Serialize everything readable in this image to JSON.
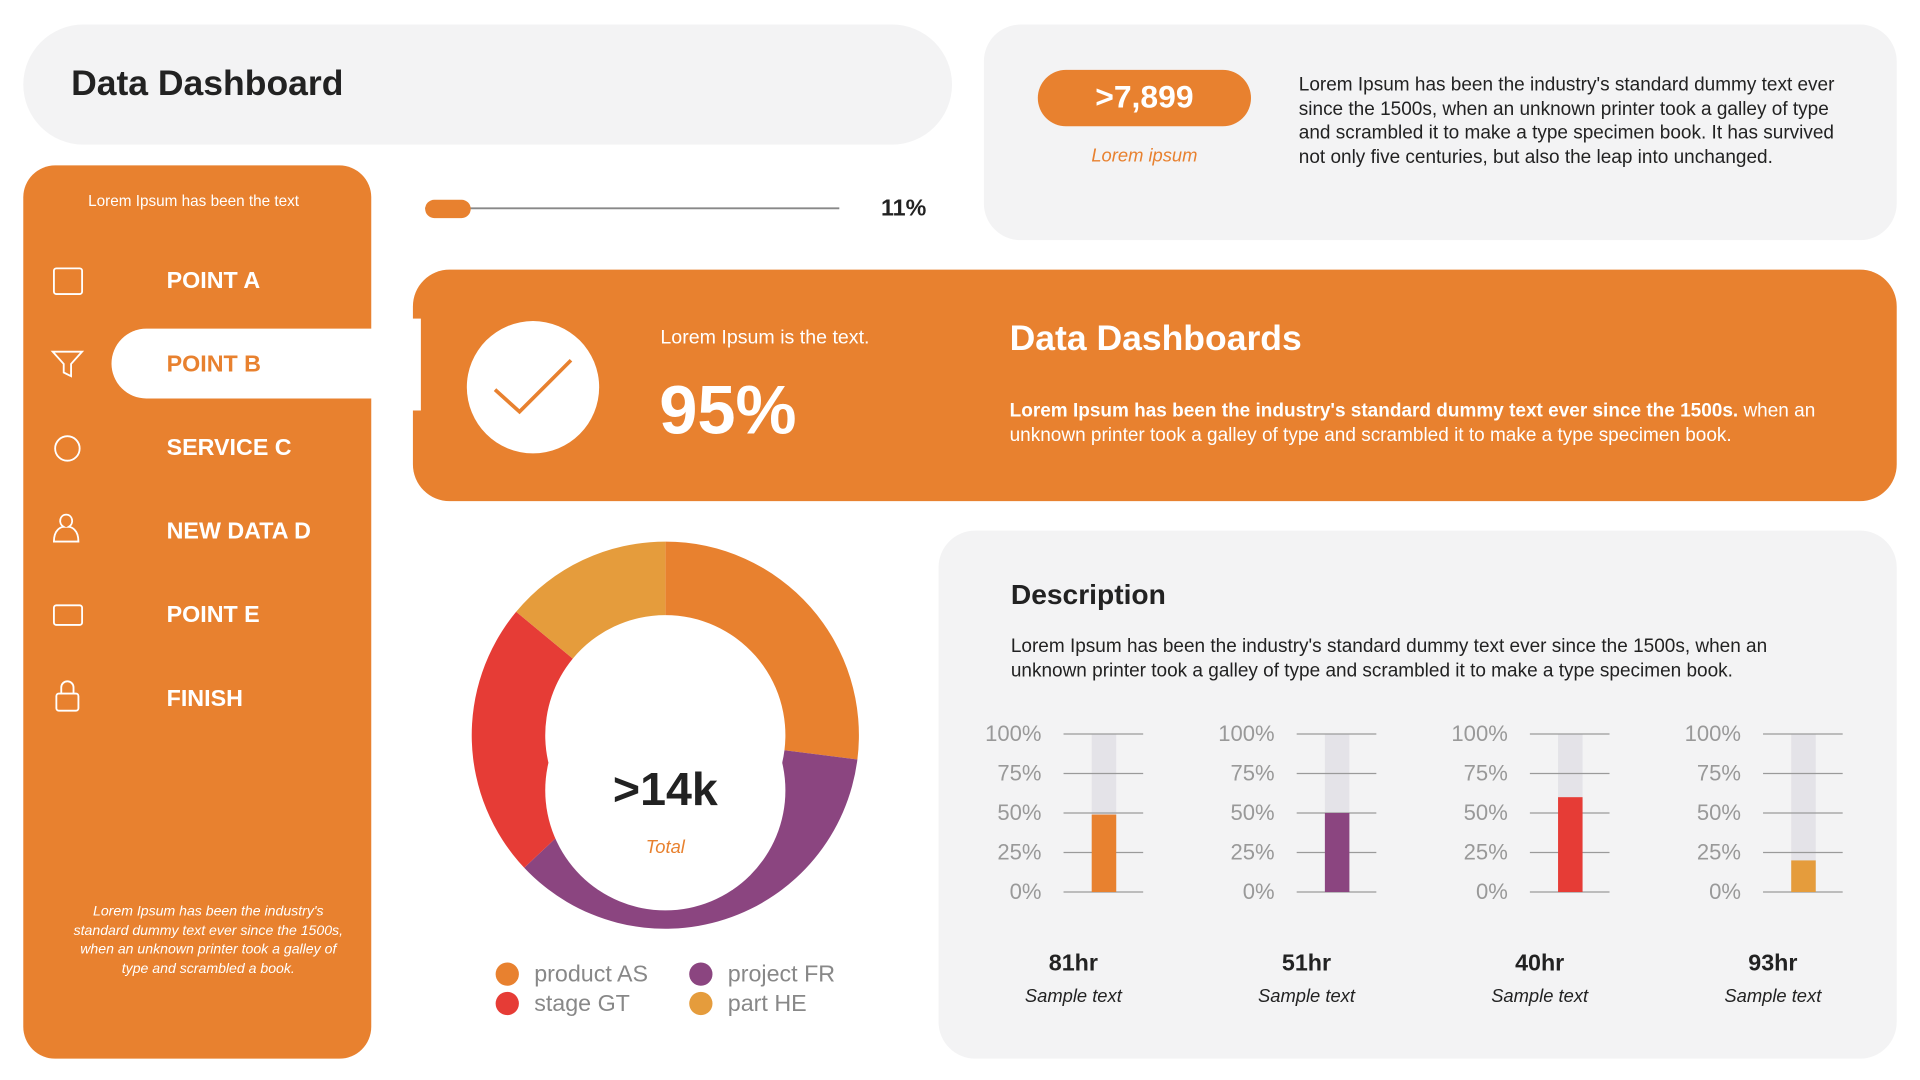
{
  "header": {
    "title": "Data Dashboard"
  },
  "stat": {
    "value": ">7,899",
    "caption": "Lorem ipsum",
    "text": "Lorem Ipsum has been the industry's standard dummy text ever since the 1500s, when an unknown printer took a galley of type and scrambled it to make a type specimen book. It has survived not only five centuries, but also the leap into unchanged."
  },
  "progress": {
    "value": 11,
    "label": "11%"
  },
  "sidebar": {
    "intro": "Lorem Ipsum has been the text",
    "items": [
      "POINT A",
      "POINT B",
      "SERVICE C",
      "NEW DATA D",
      "POINT E",
      "FINISH"
    ],
    "active": 1,
    "footer": "Lorem Ipsum has been the industry's standard dummy text ever since the 1500s, when an unknown printer took a galley of type and scrambled  a book."
  },
  "banner": {
    "subtitle": "Lorem Ipsum is the text.",
    "value": "95%",
    "title": "Data Dashboards",
    "text_bold": "Lorem Ipsum has been the industry's standard dummy text ever since the 1500s.",
    "text": "when an unknown printer took a galley of type and scrambled it to make a type specimen book."
  },
  "description": {
    "title": "Description",
    "text": "Lorem Ipsum has been the industry's standard dummy text ever since the 1500s, when an unknown printer took a galley of type and scrambled it to make a type specimen book."
  },
  "chart_data": [
    {
      "type": "pie",
      "center_label": ">14k",
      "center_caption": "Total",
      "categories": [
        "product AS",
        "project FR",
        "stage GT",
        "part HE"
      ],
      "values": [
        27,
        36,
        23,
        14
      ],
      "colors": [
        "#e8812f",
        "#8b4580",
        "#e63c36",
        "#e59c3c"
      ]
    },
    {
      "type": "bar",
      "values": [
        49
      ],
      "color": "#e8812f",
      "ylim": [
        0,
        100
      ],
      "yticks": [
        {
          "value": 100,
          "label": "100%"
        },
        {
          "value": 75,
          "label": "75%"
        },
        {
          "value": 50,
          "label": "50%"
        },
        {
          "value": 25,
          "label": "25%"
        },
        {
          "value": 0,
          "label": "0%"
        }
      ],
      "label": "81hr",
      "caption": "Sample text"
    },
    {
      "type": "bar",
      "values": [
        50
      ],
      "color": "#8b4580",
      "ylim": [
        0,
        100
      ],
      "yticks": [
        {
          "value": 100,
          "label": "100%"
        },
        {
          "value": 75,
          "label": "75%"
        },
        {
          "value": 50,
          "label": "50%"
        },
        {
          "value": 25,
          "label": "25%"
        },
        {
          "value": 0,
          "label": "0%"
        }
      ],
      "label": "51hr",
      "caption": "Sample text"
    },
    {
      "type": "bar",
      "values": [
        60
      ],
      "color": "#e63c36",
      "ylim": [
        0,
        100
      ],
      "yticks": [
        {
          "value": 100,
          "label": "100%"
        },
        {
          "value": 75,
          "label": "75%"
        },
        {
          "value": 50,
          "label": "50%"
        },
        {
          "value": 25,
          "label": "25%"
        },
        {
          "value": 0,
          "label": "0%"
        }
      ],
      "label": "40hr",
      "caption": "Sample text"
    },
    {
      "type": "bar",
      "values": [
        20
      ],
      "color": "#e59c3c",
      "ylim": [
        0,
        100
      ],
      "yticks": [
        {
          "value": 100,
          "label": "100%"
        },
        {
          "value": 75,
          "label": "75%"
        },
        {
          "value": 50,
          "label": "50%"
        },
        {
          "value": 25,
          "label": "25%"
        },
        {
          "value": 0,
          "label": "0%"
        }
      ],
      "label": "93hr",
      "caption": "Sample text"
    }
  ]
}
